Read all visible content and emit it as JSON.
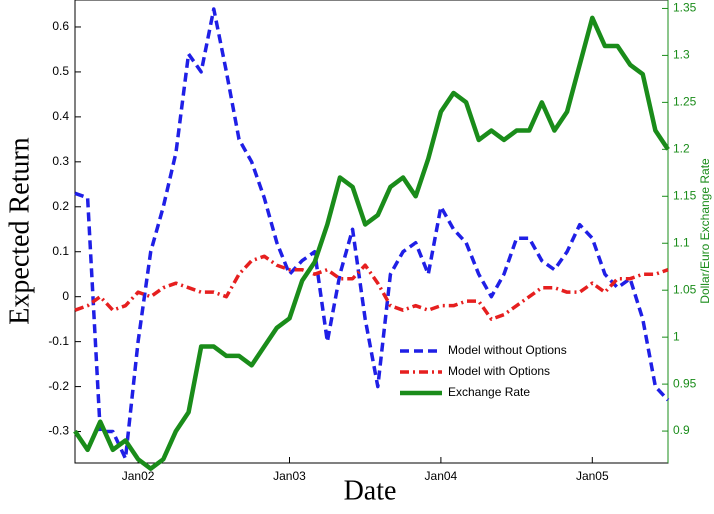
{
  "chart_data": {
    "type": "line",
    "x": [
      "2001-08",
      "2001-09",
      "2001-10",
      "2001-11",
      "2001-12",
      "2002-01",
      "2002-02",
      "2002-03",
      "2002-04",
      "2002-05",
      "2002-06",
      "2002-07",
      "2002-08",
      "2002-09",
      "2002-10",
      "2002-11",
      "2002-12",
      "2003-01",
      "2003-02",
      "2003-03",
      "2003-04",
      "2003-05",
      "2003-06",
      "2003-07",
      "2003-08",
      "2003-09",
      "2003-10",
      "2003-11",
      "2003-12",
      "2004-01",
      "2004-02",
      "2004-03",
      "2004-04",
      "2004-05",
      "2004-06",
      "2004-07",
      "2004-08",
      "2004-09",
      "2004-10",
      "2004-11",
      "2004-12",
      "2005-01",
      "2005-02",
      "2005-03",
      "2005-04",
      "2005-05",
      "2005-06",
      "2005-07"
    ],
    "xlabel": "Date",
    "ylabel": "Expected Return",
    "y2label": "Dollar/Euro Exchange Rate",
    "xlim": [
      "2001-08",
      "2005-07"
    ],
    "xticks": [
      {
        "value": "2002-01",
        "label": "Jan02"
      },
      {
        "value": "2003-01",
        "label": "Jan03"
      },
      {
        "value": "2004-01",
        "label": "Jan04"
      },
      {
        "value": "2005-01",
        "label": "Jan05"
      }
    ],
    "ylim": [
      -0.37,
      0.66
    ],
    "yticks": [
      -0.3,
      -0.2,
      -0.1,
      0,
      0.1,
      0.2,
      0.3,
      0.4,
      0.5,
      0.6
    ],
    "y2lim": [
      0.866,
      1.359
    ],
    "y2ticks": [
      0.9,
      0.95,
      1,
      1.05,
      1.1,
      1.15,
      1.2,
      1.25,
      1.3,
      1.35
    ],
    "y2color": "#1a8c1a",
    "legend": "lower-right",
    "series": [
      {
        "name": "Model without Options",
        "color": "#1f1fe6",
        "dash": "9,5",
        "values": [
          0.23,
          0.22,
          -0.3,
          -0.3,
          -0.36,
          -0.1,
          0.1,
          0.2,
          0.32,
          0.54,
          0.5,
          0.64,
          0.5,
          0.35,
          0.3,
          0.22,
          0.12,
          0.05,
          0.08,
          0.1,
          -0.1,
          0.05,
          0.15,
          -0.05,
          -0.2,
          0.05,
          0.1,
          0.12,
          0.05,
          0.2,
          0.15,
          0.12,
          0.05,
          0,
          0.05,
          0.13,
          0.13,
          0.08,
          0.06,
          0.1,
          0.16,
          0.13,
          0.05,
          0.02,
          0.04,
          -0.05,
          -0.2,
          -0.23
        ]
      },
      {
        "name": "Model with Options",
        "color": "#e61f1f",
        "dash": "9,4,2,4",
        "values": [
          -0.03,
          -0.02,
          0,
          -0.03,
          -0.02,
          0.01,
          0,
          0.02,
          0.03,
          0.02,
          0.01,
          0.01,
          0,
          0.05,
          0.08,
          0.09,
          0.07,
          0.06,
          0.06,
          0.05,
          0.06,
          0.04,
          0.04,
          0.07,
          0.03,
          -0.02,
          -0.03,
          -0.02,
          -0.03,
          -0.02,
          -0.02,
          -0.01,
          -0.01,
          -0.05,
          -0.04,
          -0.02,
          0,
          0.02,
          0.02,
          0.01,
          0.01,
          0.03,
          0.01,
          0.04,
          0.04,
          0.05,
          0.05,
          0.06
        ]
      },
      {
        "name": "Exchange Rate",
        "color": "#1a8c1a",
        "axis": "y2",
        "values": [
          0.9,
          0.88,
          0.91,
          0.88,
          0.89,
          0.87,
          0.86,
          0.87,
          0.9,
          0.92,
          0.99,
          0.99,
          0.98,
          0.98,
          0.97,
          0.99,
          1.01,
          1.02,
          1.06,
          1.08,
          1.12,
          1.17,
          1.16,
          1.12,
          1.13,
          1.16,
          1.17,
          1.15,
          1.19,
          1.24,
          1.26,
          1.25,
          1.21,
          1.22,
          1.21,
          1.22,
          1.22,
          1.25,
          1.22,
          1.24,
          1.29,
          1.34,
          1.31,
          1.31,
          1.29,
          1.28,
          1.22,
          1.2
        ]
      }
    ]
  }
}
